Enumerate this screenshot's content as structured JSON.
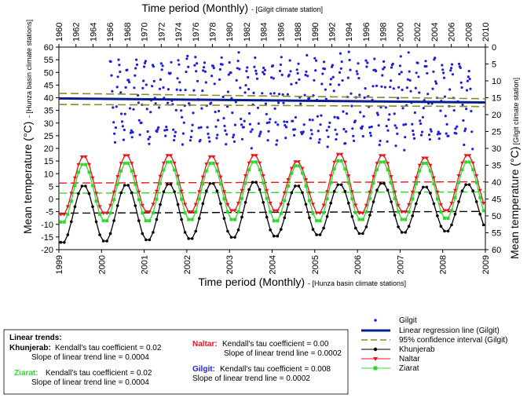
{
  "chart_data": {
    "type": "line",
    "top_axis": {
      "title": "Time period (Monthly)",
      "subtitle": "- [Gilgit climate station]",
      "ticks": [
        "1960",
        "1962",
        "1964",
        "1966",
        "1968",
        "1970",
        "1972",
        "1974",
        "1976",
        "1978",
        "1980",
        "1982",
        "1984",
        "1986",
        "1988",
        "1990",
        "1992",
        "1994",
        "1996",
        "1998",
        "2000",
        "2002",
        "2004",
        "2006",
        "2008",
        "2010"
      ],
      "range": [
        1960,
        2010
      ]
    },
    "bottom_axis": {
      "title": "Time period (Monthly)",
      "subtitle": "- [Hunza basin climate stations]",
      "ticks": [
        "1999",
        "2000",
        "2001",
        "2002",
        "2003",
        "2004",
        "2005",
        "2006",
        "2007",
        "2008",
        "2009"
      ],
      "range": [
        1999,
        2009
      ]
    },
    "left_axis": {
      "title": "Mean temperature (°C)",
      "subtitle": "- [Hunza basin climate stations]",
      "ticks": [
        "-20",
        "-15",
        "-10",
        "-5",
        "0",
        "5",
        "10",
        "15",
        "20",
        "25",
        "30",
        "35",
        "40",
        "45",
        "50",
        "55",
        "60"
      ],
      "range": [
        -20,
        60
      ]
    },
    "right_axis": {
      "title": "Mean temperature (°C)",
      "subtitle": "- [Gilgit climate station]",
      "ticks": [
        "0",
        "5",
        "10",
        "15",
        "20",
        "25",
        "30",
        "35",
        "40",
        "45",
        "50",
        "55",
        "60"
      ],
      "range": [
        0,
        60
      ],
      "inverted": true
    },
    "series": [
      {
        "name": "Gilgit",
        "style": "scatter",
        "color": "#1f1fdd",
        "axes": "top-right",
        "seasonal_model": {
          "start_year": 1966,
          "end_year": 2008.5,
          "mean": 16,
          "amplitude": 11,
          "noise": 2.5,
          "peak_month": 7
        }
      },
      {
        "name": "Linear regression line (Gilgit)",
        "style": "line",
        "color": "#0a1f8f",
        "axes": "top-right",
        "x": [
          1960,
          2010
        ],
        "y": [
          15.2,
          16.4
        ]
      },
      {
        "name": "95% confidence interval (Gilgit)",
        "style": "dashed",
        "color": "#8a8a2a",
        "axes": "top-right",
        "lines": [
          {
            "x": [
              1960,
              2010
            ],
            "y": [
              13.7,
              15.3
            ]
          },
          {
            "x": [
              1960,
              2010
            ],
            "y": [
              17.0,
              17.6
            ]
          }
        ]
      },
      {
        "name": "Khunjerab",
        "style": "line-marker",
        "color": "#000000",
        "axes": "bottom-left",
        "peaks": [
          5.5,
          5.8,
          6.2,
          6.5,
          7.0,
          5.5,
          6.0,
          6.5,
          5.0,
          6.0
        ],
        "troughs": [
          -17.5,
          -17.0,
          -16.5,
          -16.0,
          -15.5,
          -15.0,
          -14.5,
          -14.0,
          -13.5,
          -13.0
        ]
      },
      {
        "name": "Naltar",
        "style": "line-marker",
        "color": "#e8141e",
        "axes": "bottom-left",
        "peaks": [
          17.0,
          17.5,
          17.5,
          17.0,
          17.5,
          15.0,
          18.0,
          17.5,
          16.5,
          17.5
        ],
        "troughs": [
          -6.5,
          -6.0,
          -5.5,
          -5.5,
          -5.0,
          -5.0,
          -6.0,
          -6.0,
          -5.5,
          -5.0
        ]
      },
      {
        "name": "Ziarat",
        "style": "line-marker",
        "color": "#2fd82f",
        "axes": "bottom-left",
        "peaks": [
          14.0,
          14.5,
          15.0,
          14.5,
          15.0,
          13.5,
          15.5,
          15.0,
          14.5,
          15.0
        ],
        "troughs": [
          -9.5,
          -9.0,
          -9.0,
          -8.5,
          -8.5,
          -9.0,
          -9.0,
          -8.5,
          -8.5,
          -8.0
        ]
      }
    ],
    "trend_lines": [
      {
        "station": "Naltar",
        "color": "#e8141e",
        "x": [
          1999,
          2009
        ],
        "y": [
          6.3,
          6.8
        ]
      },
      {
        "station": "Ziarat",
        "color": "#2fd82f",
        "x": [
          1999,
          2009
        ],
        "y": [
          2.3,
          2.8
        ]
      },
      {
        "station": "Khunjerab",
        "color": "#000000",
        "x": [
          1999,
          2009
        ],
        "y": [
          -5.6,
          -4.9
        ]
      }
    ],
    "legend": {
      "position": "bottom-right",
      "items": [
        "Gilgit",
        "Linear regression line (Gilgit)",
        "95% confidence interval (Gilgit)",
        "Khunjerab",
        "Naltar",
        "Ziarat"
      ]
    },
    "trends_box": {
      "title": "Linear trends:",
      "entries": [
        {
          "station": "Khunjerab:",
          "color": "#000000",
          "tau": "Kendall's tau coefficient = 0.02",
          "slope": "Slope of linear trend line = 0.0004"
        },
        {
          "station": "Naltar:",
          "color": "#e8141e",
          "tau": "Kendall's tau coefficient = 0.00",
          "slope": "Slope of linear trend line = 0.0002"
        },
        {
          "station": "Ziarat:",
          "color": "#2fd82f",
          "tau": "Kendall's tau coefficient = 0.02",
          "slope": "Slope of linear trend line = 0.0004"
        },
        {
          "station": "Gilgit:",
          "color": "#1f1fdd",
          "tau": "Kendall's tau coefficient = 0.008",
          "slope": "Slope of linear trend line = 0.0002"
        }
      ]
    },
    "grid": false
  }
}
